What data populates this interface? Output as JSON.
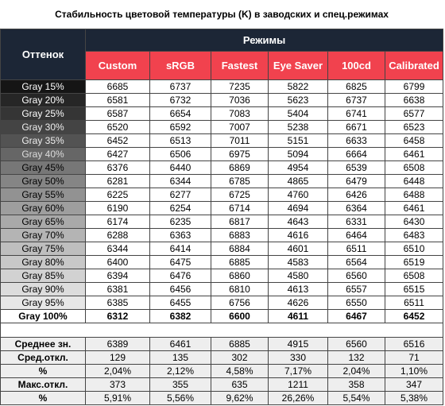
{
  "title": "Стабильность цветовой температуры (K) в заводских и спец.режимах",
  "header": {
    "shade": "Оттенок",
    "modes_title": "Режимы",
    "modes": [
      "Custom",
      "sRGB",
      "Fastest",
      "Eye Saver",
      "100cd",
      "Calibrated"
    ]
  },
  "rows": [
    {
      "label": "Gray 15%",
      "values": [
        6685,
        6737,
        7235,
        5822,
        6825,
        6799
      ]
    },
    {
      "label": "Gray 20%",
      "values": [
        6581,
        6732,
        7036,
        5623,
        6737,
        6638
      ]
    },
    {
      "label": "Gray 25%",
      "values": [
        6587,
        6654,
        7083,
        5404,
        6741,
        6577
      ]
    },
    {
      "label": "Gray 30%",
      "values": [
        6520,
        6592,
        7007,
        5238,
        6671,
        6523
      ]
    },
    {
      "label": "Gray 35%",
      "values": [
        6452,
        6513,
        7011,
        5151,
        6633,
        6458
      ]
    },
    {
      "label": "Gray 40%",
      "values": [
        6427,
        6506,
        6975,
        5094,
        6664,
        6461
      ]
    },
    {
      "label": "Gray 45%",
      "values": [
        6376,
        6440,
        6869,
        4954,
        6539,
        6508
      ]
    },
    {
      "label": "Gray 50%",
      "values": [
        6281,
        6344,
        6785,
        4865,
        6479,
        6448
      ]
    },
    {
      "label": "Gray 55%",
      "values": [
        6225,
        6277,
        6725,
        4760,
        6426,
        6488
      ]
    },
    {
      "label": "Gray 60%",
      "values": [
        6190,
        6254,
        6714,
        4694,
        6364,
        6461
      ]
    },
    {
      "label": "Gray 65%",
      "values": [
        6174,
        6235,
        6817,
        4643,
        6331,
        6430
      ]
    },
    {
      "label": "Gray 70%",
      "values": [
        6288,
        6363,
        6883,
        4616,
        6464,
        6483
      ]
    },
    {
      "label": "Gray 75%",
      "values": [
        6344,
        6414,
        6884,
        4601,
        6511,
        6510
      ]
    },
    {
      "label": "Gray 80%",
      "values": [
        6400,
        6475,
        6885,
        4583,
        6564,
        6519
      ]
    },
    {
      "label": "Gray 85%",
      "values": [
        6394,
        6476,
        6860,
        4580,
        6560,
        6508
      ]
    },
    {
      "label": "Gray 90%",
      "values": [
        6381,
        6456,
        6810,
        4613,
        6557,
        6515
      ]
    },
    {
      "label": "Gray 95%",
      "values": [
        6385,
        6455,
        6756,
        4626,
        6550,
        6511
      ]
    },
    {
      "label": "Gray 100%",
      "values": [
        6312,
        6382,
        6600,
        4611,
        6467,
        6452
      ]
    }
  ],
  "summary": [
    {
      "label": "Среднее зн.",
      "values": [
        6389,
        6461,
        6885,
        4915,
        6560,
        6516
      ]
    },
    {
      "label": "Сред.откл.",
      "values": [
        129,
        135,
        302,
        330,
        132,
        71
      ]
    },
    {
      "label": "%",
      "values": [
        "2,04%",
        "2,12%",
        "4,58%",
        "7,17%",
        "2,04%",
        "1,10%"
      ]
    },
    {
      "label": "Макс.откл.",
      "values": [
        373,
        355,
        635,
        1211,
        358,
        347
      ]
    },
    {
      "label": "%",
      "values": [
        "5,91%",
        "5,56%",
        "9,62%",
        "26,26%",
        "5,54%",
        "5,38%"
      ]
    }
  ]
}
